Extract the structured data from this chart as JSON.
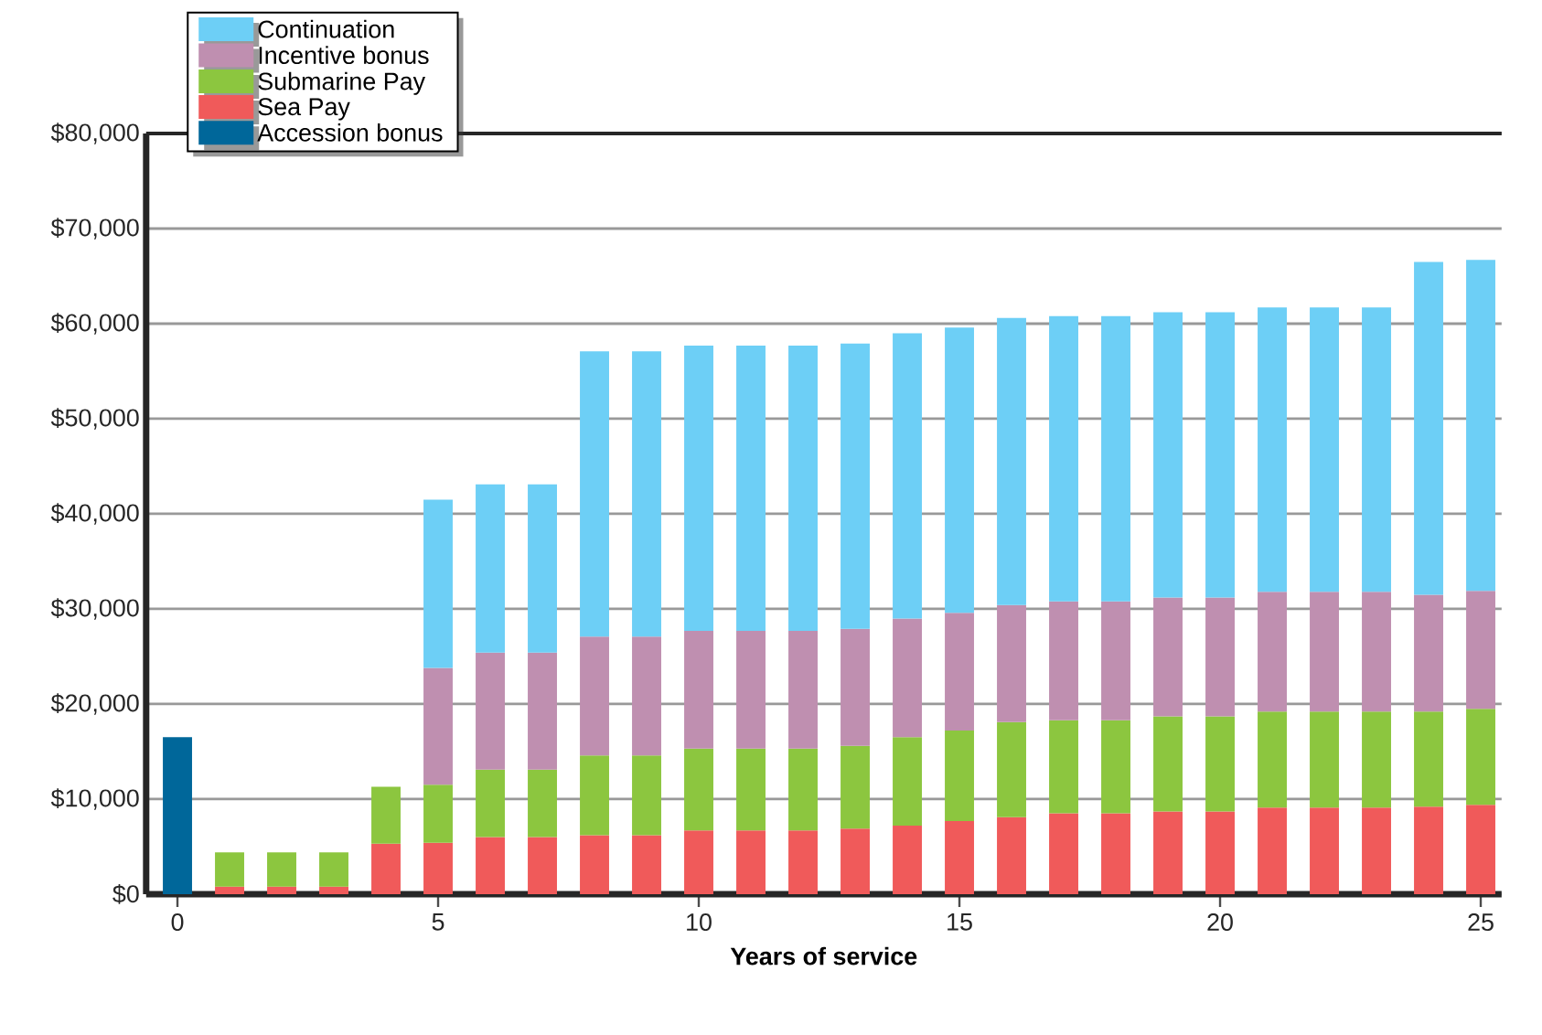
{
  "chart_data": {
    "type": "bar",
    "stacked": true,
    "xlabel": "Years of service",
    "x": [
      0,
      1,
      2,
      3,
      4,
      5,
      6,
      7,
      8,
      9,
      10,
      11,
      12,
      13,
      14,
      15,
      16,
      17,
      18,
      19,
      20,
      21,
      22,
      23,
      24,
      25
    ],
    "xlim": [
      -0.6,
      25.4
    ],
    "xticks": [
      0,
      5,
      10,
      15,
      20,
      25
    ],
    "ylim": [
      0,
      80000
    ],
    "yticks": [
      {
        "value": 0,
        "label": "$0"
      },
      {
        "value": 10000,
        "label": "$10,000"
      },
      {
        "value": 20000,
        "label": "$20,000"
      },
      {
        "value": 30000,
        "label": "$30,000"
      },
      {
        "value": 40000,
        "label": "$40,000"
      },
      {
        "value": 50000,
        "label": "$50,000"
      },
      {
        "value": 60000,
        "label": "$60,000"
      },
      {
        "value": 70000,
        "label": "$70,000"
      },
      {
        "value": 80000,
        "label": "$80,000"
      }
    ],
    "grid": "y",
    "legend": "top left",
    "series": [
      {
        "name": "Accession bonus",
        "color": "#00679a",
        "values": [
          16500,
          null,
          null,
          null,
          null,
          null,
          null,
          null,
          null,
          null,
          null,
          null,
          null,
          null,
          null,
          null,
          null,
          null,
          null,
          null,
          null,
          null,
          null,
          null,
          null,
          null
        ]
      },
      {
        "name": "Sea Pay",
        "color": "#f05a5a",
        "values": [
          null,
          800,
          800,
          800,
          5300,
          5400,
          6000,
          6000,
          6200,
          6200,
          6700,
          6700,
          6700,
          6900,
          7200,
          7700,
          8100,
          8500,
          8500,
          8700,
          8700,
          9100,
          9100,
          9100,
          9200,
          9400
        ]
      },
      {
        "name": "Submarine Pay",
        "color": "#8cc63f",
        "values": [
          null,
          3600,
          3600,
          3600,
          6000,
          6100,
          7100,
          7100,
          8400,
          8400,
          8600,
          8600,
          8600,
          8700,
          9300,
          9500,
          10000,
          9800,
          9800,
          10000,
          10000,
          10100,
          10100,
          10100,
          10000,
          10100
        ]
      },
      {
        "name": "Incentive bonus",
        "color": "#bf8fb0",
        "values": [
          null,
          null,
          null,
          null,
          null,
          12300,
          12300,
          12300,
          12500,
          12500,
          12400,
          12400,
          12400,
          12300,
          12500,
          12400,
          12300,
          12500,
          12500,
          12500,
          12500,
          12600,
          12600,
          12600,
          12300,
          12400
        ]
      },
      {
        "name": "Continuation",
        "color": "#6dcff6",
        "values": [
          null,
          null,
          null,
          null,
          null,
          17700,
          17700,
          17700,
          30000,
          30000,
          30000,
          30000,
          30000,
          30000,
          30000,
          30000,
          30200,
          30000,
          30000,
          30000,
          30000,
          29900,
          29900,
          29900,
          35000,
          34800
        ]
      }
    ]
  }
}
